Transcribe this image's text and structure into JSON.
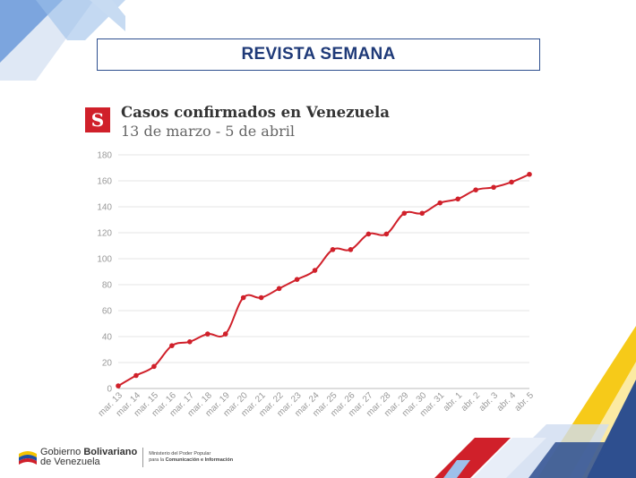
{
  "header": {
    "title": "REVISTA SEMANA"
  },
  "chart_data": {
    "type": "line",
    "title": "Casos confirmados en Venezuela",
    "subtitle": "13 de marzo - 5 de abril",
    "brand_letter": "S",
    "xlabel": "",
    "ylabel": "",
    "categories": [
      "mar. 13",
      "mar. 14",
      "mar. 15",
      "mar. 16",
      "mar. 17",
      "mar. 18",
      "mar. 19",
      "mar. 20",
      "mar. 21",
      "mar. 22",
      "mar. 23",
      "mar. 24",
      "mar. 25",
      "mar. 26",
      "mar. 27",
      "mar. 28",
      "mar. 29",
      "mar. 30",
      "mar. 31",
      "abr. 1",
      "abr. 2",
      "abr. 3",
      "abr. 4",
      "abr. 5"
    ],
    "values": [
      2,
      10,
      17,
      33,
      36,
      42,
      42,
      70,
      70,
      77,
      84,
      91,
      107,
      107,
      119,
      119,
      135,
      135,
      143,
      146,
      153,
      155,
      159,
      165
    ],
    "ylim": [
      0,
      180
    ],
    "yticks": [
      0,
      20,
      40,
      60,
      80,
      100,
      120,
      140,
      160,
      180
    ],
    "grid": true,
    "legend": "none",
    "line_color": "#d0202a"
  },
  "footer": {
    "gov_line1_prefix": "Gobierno ",
    "gov_line1_bold": "Bolivariano",
    "gov_line2": "de Venezuela",
    "ministry_line1": "Ministerio del Poder Popular",
    "ministry_line2_prefix": "para la ",
    "ministry_line2_bold": "Comunicación e Información"
  },
  "colors": {
    "accent_blue": "#2e4f8f",
    "accent_red": "#d0202a",
    "accent_yellow": "#f5c400"
  }
}
